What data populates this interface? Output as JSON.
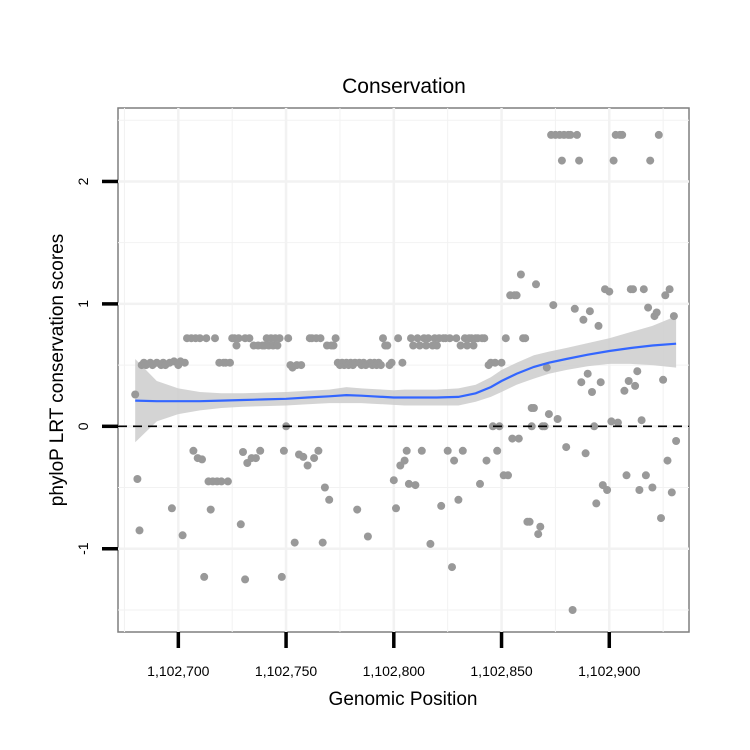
{
  "chart_data": {
    "type": "scatter",
    "title": "Conservation",
    "xlabel": "Genomic Position",
    "ylabel": "phyloP LRT conservation scores",
    "xlim": [
      1102672,
      1102937
    ],
    "ylim": [
      -1.68,
      2.6
    ],
    "xticks": [
      1102700,
      1102750,
      1102800,
      1102850,
      1102900
    ],
    "xtick_labels": [
      "1,102,700",
      "1,102,750",
      "1,102,800",
      "1,102,850",
      "1,102,900"
    ],
    "yticks": [
      -1,
      0,
      1,
      2
    ],
    "ytick_labels": [
      "-1",
      "0",
      "1",
      "2"
    ],
    "grid": true,
    "reference_line": {
      "y": 0,
      "style": "dashed"
    },
    "colors": {
      "points": "#999999",
      "smooth": "#3366ff",
      "ribbon": "#cccccc",
      "panel_border": "#7f7f7f",
      "grid": "#f2f2f2",
      "refline": "#000000"
    },
    "points": [
      [
        1102680,
        0.26
      ],
      [
        1102681,
        -0.43
      ],
      [
        1102682,
        -0.85
      ],
      [
        1102683,
        0.5
      ],
      [
        1102684,
        0.52
      ],
      [
        1102685,
        0.5
      ],
      [
        1102687,
        0.52
      ],
      [
        1102688,
        0.5
      ],
      [
        1102690,
        0.52
      ],
      [
        1102692,
        0.5
      ],
      [
        1102693,
        0.52
      ],
      [
        1102694,
        0.5
      ],
      [
        1102696,
        0.52
      ],
      [
        1102697,
        -0.67
      ],
      [
        1102698,
        0.53
      ],
      [
        1102700,
        0.5
      ],
      [
        1102701,
        0.53
      ],
      [
        1102702,
        -0.89
      ],
      [
        1102703,
        0.52
      ],
      [
        1102704,
        0.72
      ],
      [
        1102706,
        0.72
      ],
      [
        1102707,
        -0.2
      ],
      [
        1102708,
        0.72
      ],
      [
        1102709,
        -0.26
      ],
      [
        1102710,
        0.72
      ],
      [
        1102711,
        -0.27
      ],
      [
        1102712,
        -1.23
      ],
      [
        1102713,
        0.72
      ],
      [
        1102714,
        -0.45
      ],
      [
        1102715,
        -0.68
      ],
      [
        1102716,
        -0.45
      ],
      [
        1102717,
        0.72
      ],
      [
        1102718,
        -0.45
      ],
      [
        1102719,
        0.52
      ],
      [
        1102720,
        -0.45
      ],
      [
        1102721,
        0.52
      ],
      [
        1102722,
        0.52
      ],
      [
        1102723,
        -0.45
      ],
      [
        1102724,
        0.52
      ],
      [
        1102725,
        0.72
      ],
      [
        1102726,
        0.72
      ],
      [
        1102727,
        0.66
      ],
      [
        1102728,
        0.72
      ],
      [
        1102729,
        -0.8
      ],
      [
        1102730,
        -0.21
      ],
      [
        1102731,
        0.72
      ],
      [
        1102731,
        -1.25
      ],
      [
        1102732,
        -0.3
      ],
      [
        1102733,
        0.72
      ],
      [
        1102734,
        -0.26
      ],
      [
        1102735,
        0.66
      ],
      [
        1102736,
        -0.26
      ],
      [
        1102737,
        0.66
      ],
      [
        1102738,
        -0.2
      ],
      [
        1102739,
        0.66
      ],
      [
        1102740,
        0.66
      ],
      [
        1102741,
        0.72
      ],
      [
        1102742,
        0.66
      ],
      [
        1102743,
        0.72
      ],
      [
        1102744,
        0.66
      ],
      [
        1102745,
        0.72
      ],
      [
        1102746,
        0.66
      ],
      [
        1102747,
        0.72
      ],
      [
        1102748,
        -1.23
      ],
      [
        1102749,
        -0.2
      ],
      [
        1102750,
        0.0
      ],
      [
        1102751,
        0.72
      ],
      [
        1102752,
        0.5
      ],
      [
        1102753,
        0.48
      ],
      [
        1102754,
        -0.95
      ],
      [
        1102755,
        0.5
      ],
      [
        1102756,
        -0.23
      ],
      [
        1102757,
        0.5
      ],
      [
        1102758,
        -0.25
      ],
      [
        1102760,
        -0.32
      ],
      [
        1102761,
        0.72
      ],
      [
        1102762,
        0.72
      ],
      [
        1102763,
        -0.26
      ],
      [
        1102764,
        0.72
      ],
      [
        1102765,
        -0.2
      ],
      [
        1102766,
        0.72
      ],
      [
        1102767,
        -0.95
      ],
      [
        1102768,
        -0.5
      ],
      [
        1102769,
        0.66
      ],
      [
        1102770,
        -0.6
      ],
      [
        1102771,
        0.66
      ],
      [
        1102772,
        0.66
      ],
      [
        1102773,
        0.72
      ],
      [
        1102774,
        0.52
      ],
      [
        1102775,
        0.5
      ],
      [
        1102776,
        0.52
      ],
      [
        1102777,
        0.5
      ],
      [
        1102778,
        0.52
      ],
      [
        1102779,
        0.5
      ],
      [
        1102780,
        0.52
      ],
      [
        1102781,
        0.5
      ],
      [
        1102782,
        0.52
      ],
      [
        1102783,
        -0.68
      ],
      [
        1102784,
        0.52
      ],
      [
        1102785,
        0.5
      ],
      [
        1102786,
        0.52
      ],
      [
        1102787,
        0.5
      ],
      [
        1102788,
        -0.9
      ],
      [
        1102789,
        0.52
      ],
      [
        1102790,
        0.5
      ],
      [
        1102791,
        0.52
      ],
      [
        1102792,
        0.5
      ],
      [
        1102793,
        0.52
      ],
      [
        1102794,
        0.5
      ],
      [
        1102795,
        0.72
      ],
      [
        1102796,
        0.66
      ],
      [
        1102797,
        0.66
      ],
      [
        1102798,
        0.5
      ],
      [
        1102799,
        0.52
      ],
      [
        1102800,
        -0.44
      ],
      [
        1102801,
        -0.67
      ],
      [
        1102802,
        0.72
      ],
      [
        1102803,
        -0.32
      ],
      [
        1102804,
        0.52
      ],
      [
        1102805,
        -0.28
      ],
      [
        1102806,
        -0.2
      ],
      [
        1102807,
        -0.47
      ],
      [
        1102808,
        0.72
      ],
      [
        1102809,
        0.66
      ],
      [
        1102810,
        -0.48
      ],
      [
        1102811,
        0.72
      ],
      [
        1102812,
        0.66
      ],
      [
        1102813,
        -0.2
      ],
      [
        1102814,
        0.72
      ],
      [
        1102815,
        0.66
      ],
      [
        1102816,
        0.72
      ],
      [
        1102817,
        -0.96
      ],
      [
        1102818,
        0.66
      ],
      [
        1102819,
        0.72
      ],
      [
        1102820,
        0.66
      ],
      [
        1102821,
        0.72
      ],
      [
        1102822,
        -0.65
      ],
      [
        1102823,
        0.72
      ],
      [
        1102824,
        0.72
      ],
      [
        1102825,
        -0.2
      ],
      [
        1102826,
        0.72
      ],
      [
        1102827,
        -1.15
      ],
      [
        1102828,
        -0.28
      ],
      [
        1102829,
        0.72
      ],
      [
        1102830,
        -0.6
      ],
      [
        1102831,
        0.66
      ],
      [
        1102832,
        -0.2
      ],
      [
        1102833,
        0.72
      ],
      [
        1102834,
        0.66
      ],
      [
        1102835,
        0.72
      ],
      [
        1102836,
        0.72
      ],
      [
        1102837,
        0.66
      ],
      [
        1102838,
        0.72
      ],
      [
        1102839,
        0.72
      ],
      [
        1102840,
        -0.47
      ],
      [
        1102841,
        0.72
      ],
      [
        1102842,
        0.72
      ],
      [
        1102843,
        -0.28
      ],
      [
        1102844,
        0.5
      ],
      [
        1102845,
        0.52
      ],
      [
        1102846,
        0.0
      ],
      [
        1102847,
        0.52
      ],
      [
        1102848,
        -0.2
      ],
      [
        1102849,
        0.0
      ],
      [
        1102850,
        0.52
      ],
      [
        1102851,
        -0.4
      ],
      [
        1102852,
        0.72
      ],
      [
        1102853,
        -0.4
      ],
      [
        1102854,
        1.07
      ],
      [
        1102855,
        -0.1
      ],
      [
        1102856,
        1.07
      ],
      [
        1102857,
        1.07
      ],
      [
        1102858,
        -0.1
      ],
      [
        1102859,
        1.24
      ],
      [
        1102860,
        0.72
      ],
      [
        1102861,
        0.72
      ],
      [
        1102862,
        -0.78
      ],
      [
        1102863,
        -0.78
      ],
      [
        1102864,
        0.0
      ],
      [
        1102864,
        0.15
      ],
      [
        1102865,
        0.15
      ],
      [
        1102866,
        1.16
      ],
      [
        1102867,
        -0.88
      ],
      [
        1102868,
        -0.82
      ],
      [
        1102869,
        0.0
      ],
      [
        1102870,
        0.0
      ],
      [
        1102871,
        0.48
      ],
      [
        1102872,
        0.1
      ],
      [
        1102873,
        2.38
      ],
      [
        1102874,
        0.99
      ],
      [
        1102875,
        2.38
      ],
      [
        1102876,
        0.06
      ],
      [
        1102877,
        2.38
      ],
      [
        1102878,
        2.17
      ],
      [
        1102879,
        2.38
      ],
      [
        1102880,
        -0.17
      ],
      [
        1102881,
        2.38
      ],
      [
        1102882,
        2.38
      ],
      [
        1102883,
        -1.5
      ],
      [
        1102884,
        0.96
      ],
      [
        1102885,
        2.38
      ],
      [
        1102886,
        2.17
      ],
      [
        1102887,
        0.36
      ],
      [
        1102888,
        0.87
      ],
      [
        1102889,
        -0.22
      ],
      [
        1102890,
        0.43
      ],
      [
        1102891,
        0.94
      ],
      [
        1102892,
        0.28
      ],
      [
        1102893,
        0.0
      ],
      [
        1102894,
        -0.63
      ],
      [
        1102895,
        0.82
      ],
      [
        1102896,
        0.36
      ],
      [
        1102897,
        -0.48
      ],
      [
        1102898,
        1.12
      ],
      [
        1102899,
        -0.52
      ],
      [
        1102900,
        1.1
      ],
      [
        1102901,
        0.04
      ],
      [
        1102902,
        2.17
      ],
      [
        1102903,
        2.38
      ],
      [
        1102904,
        0.03
      ],
      [
        1102905,
        2.38
      ],
      [
        1102906,
        2.38
      ],
      [
        1102907,
        0.29
      ],
      [
        1102908,
        -0.4
      ],
      [
        1102909,
        0.37
      ],
      [
        1102910,
        1.12
      ],
      [
        1102911,
        1.12
      ],
      [
        1102912,
        0.33
      ],
      [
        1102913,
        0.45
      ],
      [
        1102914,
        -0.52
      ],
      [
        1102915,
        0.05
      ],
      [
        1102916,
        1.12
      ],
      [
        1102917,
        -0.4
      ],
      [
        1102918,
        0.97
      ],
      [
        1102919,
        2.17
      ],
      [
        1102920,
        -0.5
      ],
      [
        1102921,
        0.9
      ],
      [
        1102922,
        0.93
      ],
      [
        1102923,
        2.38
      ],
      [
        1102924,
        -0.75
      ],
      [
        1102925,
        0.38
      ],
      [
        1102926,
        1.07
      ],
      [
        1102927,
        -0.28
      ],
      [
        1102928,
        1.12
      ],
      [
        1102929,
        -0.54
      ],
      [
        1102930,
        0.9
      ],
      [
        1102931,
        -0.12
      ]
    ],
    "smooth": {
      "x": [
        1102680,
        1102690,
        1102700,
        1102710,
        1102720,
        1102730,
        1102740,
        1102750,
        1102760,
        1102770,
        1102778,
        1102785,
        1102790,
        1102800,
        1102805,
        1102810,
        1102820,
        1102830,
        1102838,
        1102845,
        1102850,
        1102857,
        1102865,
        1102872,
        1102880,
        1102890,
        1102900,
        1102910,
        1102920,
        1102931
      ],
      "y": [
        0.21,
        0.205,
        0.205,
        0.205,
        0.21,
        0.215,
        0.22,
        0.225,
        0.235,
        0.245,
        0.255,
        0.25,
        0.245,
        0.235,
        0.235,
        0.235,
        0.235,
        0.24,
        0.27,
        0.32,
        0.37,
        0.43,
        0.485,
        0.52,
        0.55,
        0.585,
        0.615,
        0.64,
        0.66,
        0.675
      ],
      "lower": [
        -0.13,
        0.04,
        0.1,
        0.13,
        0.15,
        0.16,
        0.165,
        0.17,
        0.18,
        0.19,
        0.19,
        0.19,
        0.185,
        0.175,
        0.17,
        0.17,
        0.17,
        0.17,
        0.2,
        0.24,
        0.28,
        0.34,
        0.39,
        0.43,
        0.46,
        0.49,
        0.51,
        0.51,
        0.5,
        0.48
      ],
      "upper": [
        0.55,
        0.37,
        0.31,
        0.28,
        0.27,
        0.27,
        0.275,
        0.28,
        0.29,
        0.3,
        0.32,
        0.31,
        0.305,
        0.295,
        0.3,
        0.3,
        0.3,
        0.31,
        0.34,
        0.4,
        0.46,
        0.52,
        0.58,
        0.61,
        0.64,
        0.68,
        0.72,
        0.77,
        0.82,
        0.9
      ]
    }
  }
}
